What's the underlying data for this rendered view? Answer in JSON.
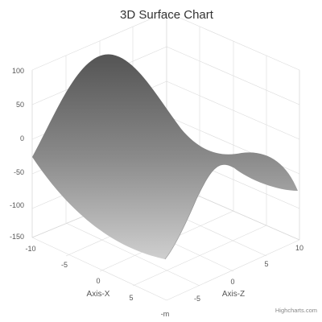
{
  "chart_data": {
    "type": "surface3d",
    "title": "3D Surface Chart",
    "xlabel": "Axis-X",
    "zlabel": "Axis-Z",
    "ylabel": "",
    "x_ticks": [
      "-10",
      "-5",
      "0",
      "5"
    ],
    "z_ticks": [
      "-5",
      "0",
      "5",
      "10"
    ],
    "z_tick_partial": "-m",
    "y_ticks": [
      "100",
      "50",
      "0",
      "-50",
      "-100",
      "-150"
    ],
    "xlim": [
      -10,
      10
    ],
    "zlim": [
      -10,
      10
    ],
    "ylim": [
      -150,
      100
    ],
    "surface": {
      "formula": "y = x^2 - z^2",
      "x_range": [
        -10,
        10
      ],
      "z_range": [
        -10,
        10
      ],
      "corner_values": {
        "x=-10,z=-10": 0,
        "x=-10,z=10": 0,
        "x=10,z=10": 0,
        "x=10,z=-10": 0,
        "x=-10,z=0": 100,
        "x=0,z=-10": -100
      }
    },
    "colors": {
      "surface_high": "#555555",
      "surface_low": "#d4d4d4",
      "grid": "#dcdcdc",
      "frame": "#d8d8d8"
    },
    "grid": true,
    "legend": "none"
  },
  "credits": "Highcharts.com"
}
